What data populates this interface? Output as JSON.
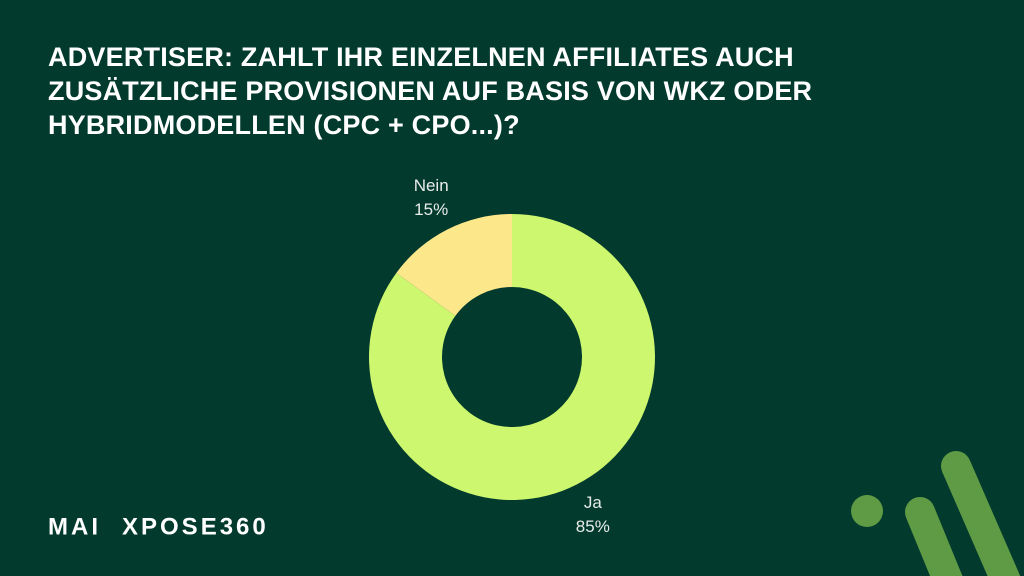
{
  "chart_data": {
    "type": "donut",
    "title": "ADVERTISER: ZAHLT IHR EINZELNEN AFFILIATES AUCH ZUSÄTZLICHE PROVISIONEN AUF BASIS VON WKZ ODER HYBRIDMODELLEN (CPC + CPO...)?",
    "categories": [
      "Ja",
      "Nein"
    ],
    "values": [
      85,
      15
    ],
    "value_labels": [
      "85%",
      "15%"
    ],
    "colors": [
      "#ccf76e",
      "#fce88a"
    ]
  },
  "logo": {
    "mark": "MAI",
    "name": "XPOSE360"
  }
}
